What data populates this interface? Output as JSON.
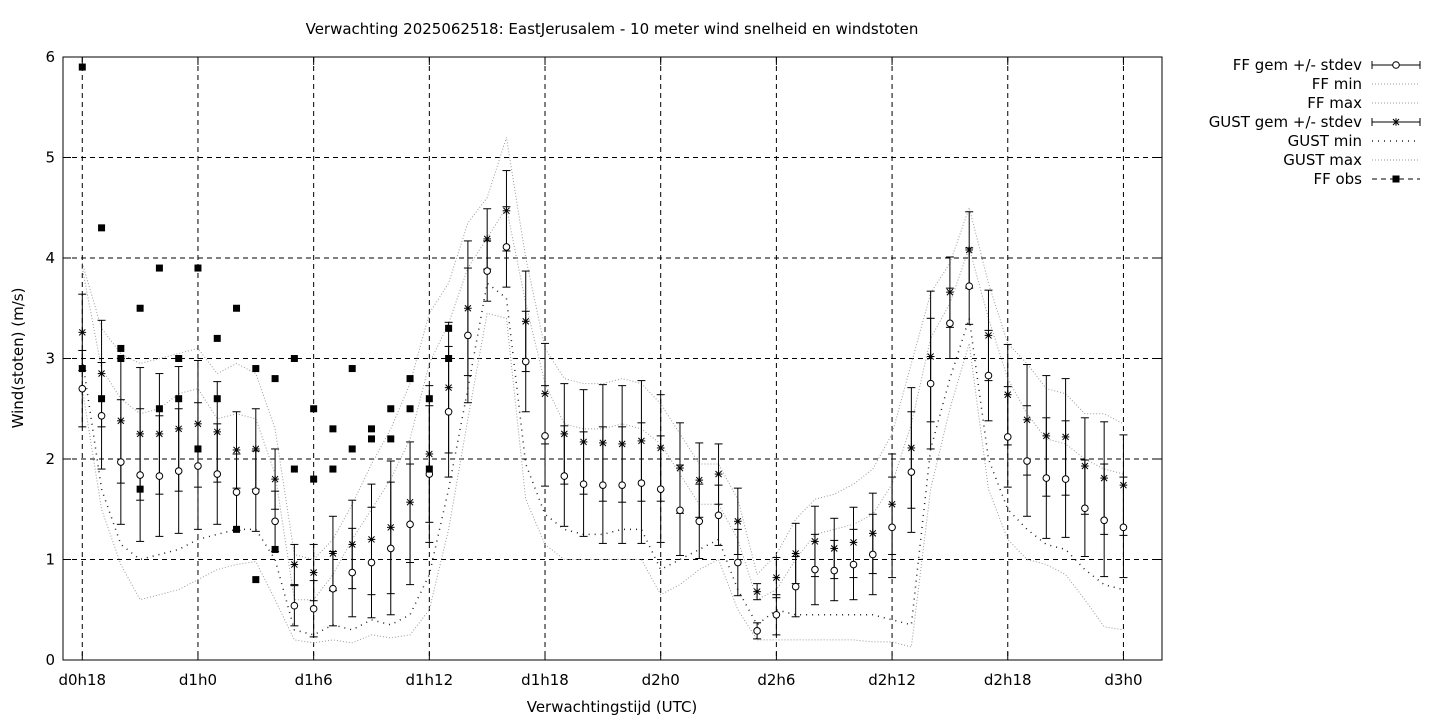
{
  "chart_data": {
    "type": "line",
    "title": "Verwachting 2025062518: EastJerusalem - 10 meter wind snelheid en windstoten",
    "xlabel": "Verwachtingstijd (UTC)",
    "ylabel": "Wind(stoten) (m/s)",
    "ylim": [
      0,
      6
    ],
    "y_ticks": [
      "0",
      "1",
      "2",
      "3",
      "4",
      "5",
      "6"
    ],
    "xlim_hours": [
      -1,
      56
    ],
    "x_ticks": [
      {
        "hour": 0,
        "label": "d0h18"
      },
      {
        "hour": 6,
        "label": "d1h0"
      },
      {
        "hour": 12,
        "label": "d1h6"
      },
      {
        "hour": 18,
        "label": "d1h12"
      },
      {
        "hour": 24,
        "label": "d1h18"
      },
      {
        "hour": 30,
        "label": "d2h0"
      },
      {
        "hour": 36,
        "label": "d2h6"
      },
      {
        "hour": 42,
        "label": "d2h12"
      },
      {
        "hour": 48,
        "label": "d2h18"
      },
      {
        "hour": 54,
        "label": "d3h0"
      }
    ],
    "grid": true,
    "legend_position": "outside-right",
    "forecast_hours": [
      0,
      1,
      2,
      3,
      4,
      5,
      6,
      7,
      8,
      9,
      10,
      11,
      12,
      13,
      14,
      15,
      16,
      17,
      18,
      19,
      20,
      21,
      22,
      23,
      24,
      25,
      26,
      27,
      28,
      29,
      30,
      31,
      32,
      33,
      34,
      35,
      36,
      37,
      38,
      39,
      40,
      41,
      42,
      43,
      44,
      45,
      46,
      47,
      48,
      49,
      50,
      51,
      52,
      53,
      54
    ],
    "series": [
      {
        "name": "FF gem +/- stdev",
        "mean": [
          2.7,
          2.43,
          1.97,
          1.84,
          1.83,
          1.88,
          1.93,
          1.85,
          1.67,
          1.68,
          1.38,
          0.54,
          0.51,
          0.71,
          0.87,
          0.97,
          1.11,
          1.35,
          1.85,
          2.47,
          3.23,
          3.87,
          4.11,
          2.97,
          2.23,
          1.83,
          1.75,
          1.74,
          1.74,
          1.76,
          1.7,
          1.49,
          1.38,
          1.44,
          0.97,
          0.29,
          0.45,
          0.73,
          0.9,
          0.89,
          0.95,
          1.05,
          1.32,
          1.87,
          2.75,
          3.35,
          3.72,
          2.83,
          2.22,
          1.98,
          1.81,
          1.8,
          1.51,
          1.39,
          1.32
        ],
        "stdev": [
          0.38,
          0.53,
          0.62,
          0.66,
          0.6,
          0.62,
          0.63,
          0.5,
          0.38,
          0.4,
          0.3,
          0.2,
          0.28,
          0.37,
          0.44,
          0.55,
          0.66,
          0.6,
          0.68,
          0.65,
          0.67,
          0.3,
          0.4,
          0.5,
          0.5,
          0.5,
          0.52,
          0.58,
          0.58,
          0.6,
          0.53,
          0.45,
          0.37,
          0.3,
          0.33,
          0.08,
          0.2,
          0.3,
          0.35,
          0.3,
          0.35,
          0.4,
          0.5,
          0.6,
          0.65,
          0.35,
          0.38,
          0.45,
          0.5,
          0.55,
          0.6,
          0.58,
          0.48,
          0.56,
          0.5
        ]
      },
      {
        "name": "FF min",
        "values": [
          2.7,
          1.5,
          0.95,
          0.6,
          0.65,
          0.7,
          0.8,
          0.9,
          0.95,
          0.98,
          0.6,
          0.2,
          0.17,
          0.2,
          0.17,
          0.25,
          0.22,
          0.25,
          0.5,
          1.3,
          2.4,
          3.45,
          3.4,
          1.6,
          1.15,
          1.0,
          1.0,
          1.0,
          1.0,
          1.0,
          0.65,
          0.75,
          0.9,
          1.0,
          0.5,
          0.2,
          0.2,
          0.2,
          0.2,
          0.2,
          0.2,
          0.18,
          0.18,
          0.13,
          1.7,
          2.5,
          3.15,
          1.7,
          1.2,
          1.0,
          0.95,
          0.85,
          0.6,
          0.33,
          0.3
        ]
      },
      {
        "name": "FF max",
        "values": [
          3.9,
          2.9,
          2.6,
          2.45,
          2.5,
          2.65,
          2.7,
          2.4,
          2.45,
          2.4,
          1.85,
          0.6,
          0.6,
          0.85,
          1.2,
          1.5,
          1.8,
          2.2,
          2.95,
          3.35,
          3.9,
          4.2,
          4.5,
          3.55,
          2.75,
          2.35,
          2.3,
          2.3,
          2.35,
          2.3,
          2.15,
          1.85,
          1.55,
          1.55,
          1.2,
          0.6,
          0.7,
          1.0,
          1.25,
          1.3,
          1.35,
          1.45,
          1.75,
          2.35,
          3.2,
          3.55,
          4.1,
          3.4,
          2.8,
          2.45,
          2.2,
          2.15,
          2.0,
          1.9,
          1.85
        ]
      },
      {
        "name": "GUST gem +/- stdev",
        "mean": [
          3.26,
          2.85,
          2.38,
          2.25,
          2.25,
          2.3,
          2.35,
          2.27,
          2.09,
          2.1,
          1.8,
          0.95,
          0.87,
          1.06,
          1.15,
          1.2,
          1.32,
          1.57,
          2.05,
          2.71,
          3.5,
          4.19,
          4.47,
          3.37,
          2.65,
          2.25,
          2.17,
          2.16,
          2.15,
          2.18,
          2.11,
          1.91,
          1.79,
          1.85,
          1.38,
          0.68,
          0.82,
          1.06,
          1.18,
          1.11,
          1.17,
          1.26,
          1.55,
          2.11,
          3.02,
          3.66,
          4.08,
          3.23,
          2.64,
          2.39,
          2.23,
          2.22,
          1.93,
          1.81,
          1.74
        ]
      },
      {
        "name": "GUST min",
        "values": [
          3.0,
          1.7,
          1.15,
          1.0,
          1.05,
          1.1,
          1.2,
          1.25,
          1.3,
          1.3,
          1.0,
          0.3,
          0.25,
          0.35,
          0.3,
          0.4,
          0.35,
          0.45,
          0.85,
          1.7,
          2.7,
          3.75,
          3.6,
          1.95,
          1.45,
          1.3,
          1.25,
          1.25,
          1.3,
          1.3,
          0.9,
          1.0,
          1.1,
          1.2,
          0.7,
          0.35,
          0.5,
          0.45,
          0.45,
          0.45,
          0.45,
          0.45,
          0.4,
          0.35,
          2.1,
          2.8,
          3.4,
          2.0,
          1.5,
          1.3,
          1.15,
          1.1,
          0.9,
          0.75,
          0.7
        ]
      },
      {
        "name": "GUST max",
        "values": [
          3.95,
          3.3,
          3.05,
          2.95,
          3.0,
          3.05,
          3.1,
          2.85,
          2.95,
          2.85,
          2.3,
          1.05,
          1.0,
          1.2,
          1.55,
          1.95,
          2.3,
          2.75,
          3.45,
          3.75,
          4.35,
          4.6,
          5.2,
          4.0,
          3.1,
          2.8,
          2.75,
          2.75,
          2.8,
          2.75,
          2.55,
          2.25,
          1.95,
          1.95,
          1.6,
          0.85,
          1.05,
          1.4,
          1.6,
          1.65,
          1.75,
          1.9,
          2.25,
          2.95,
          3.65,
          3.95,
          4.5,
          3.75,
          3.15,
          2.95,
          2.7,
          2.65,
          2.45,
          2.45,
          2.35
        ]
      },
      {
        "name": "FF obs",
        "points": [
          [
            0,
            5.9
          ],
          [
            0,
            2.9
          ],
          [
            1,
            4.3
          ],
          [
            1,
            2.6
          ],
          [
            2,
            3.1
          ],
          [
            2,
            3.0
          ],
          [
            3,
            3.5
          ],
          [
            3,
            1.7
          ],
          [
            4,
            3.9
          ],
          [
            4,
            2.5
          ],
          [
            5,
            3.0
          ],
          [
            5,
            2.6
          ],
          [
            6,
            3.9
          ],
          [
            6,
            2.1
          ],
          [
            7,
            3.2
          ],
          [
            7,
            2.6
          ],
          [
            8,
            3.5
          ],
          [
            8,
            1.3
          ],
          [
            9,
            2.9
          ],
          [
            9,
            0.8
          ],
          [
            10,
            2.8
          ],
          [
            10,
            1.1
          ],
          [
            11,
            3.0
          ],
          [
            11,
            1.9
          ],
          [
            12,
            2.5
          ],
          [
            12,
            1.8
          ],
          [
            13,
            2.3
          ],
          [
            13,
            1.9
          ],
          [
            14,
            2.9
          ],
          [
            14,
            2.1
          ],
          [
            15,
            2.3
          ],
          [
            15,
            2.2
          ],
          [
            16,
            2.5
          ],
          [
            16,
            2.2
          ],
          [
            17,
            2.8
          ],
          [
            17,
            2.5
          ],
          [
            18,
            2.6
          ],
          [
            18,
            1.9
          ],
          [
            19,
            3.3
          ],
          [
            19,
            3.0
          ]
        ]
      }
    ]
  }
}
